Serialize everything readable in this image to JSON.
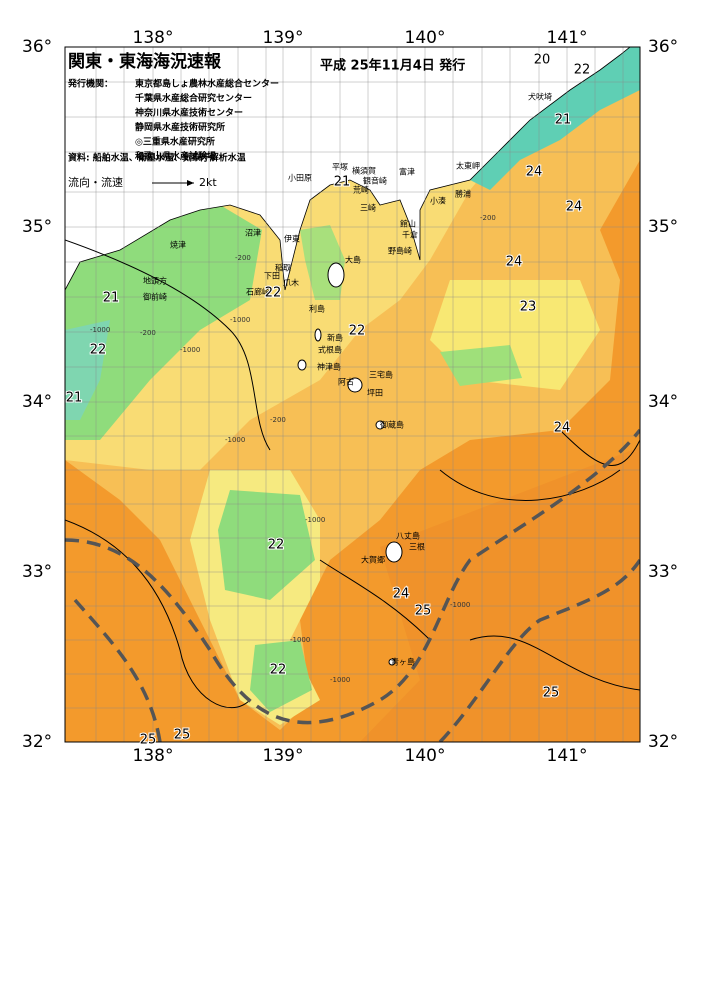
{
  "header": {
    "title": "関東・東海海況速報",
    "date": "平成 25年11月4日 発行"
  },
  "issuers": {
    "label": "発行機関：",
    "names": [
      "東京都島しょ農林水産総合センター",
      "千葉県水産総合研究センター",
      "神奈川県水産技術センター",
      "静岡県水産技術研究所",
      "◎三重県水産研究所",
      "和歌山県水産試験場"
    ]
  },
  "source": "資料: 船舶水温、衛星水温、気象庁解析水温",
  "legend": {
    "label": "流向・流速",
    "speed": "2kt"
  },
  "axes": {
    "longitude": [
      "138°",
      "139°",
      "140°",
      "141°"
    ],
    "latitude": [
      "36°",
      "35°",
      "34°",
      "33°",
      "32°"
    ]
  },
  "places": [
    "犬吠埼",
    "太東岬",
    "勝浦",
    "小湊",
    "小田原",
    "平塚",
    "横須賀",
    "観音崎",
    "荒崎",
    "富津",
    "三崎",
    "館山",
    "千倉",
    "野島崎",
    "大島",
    "焼津",
    "沼津",
    "伊東",
    "稲取",
    "下田",
    "爪木",
    "石廊崎",
    "地頭方",
    "御前崎",
    "利島",
    "新島",
    "式根島",
    "神津島",
    "三宅島",
    "阿古",
    "坪田",
    "御蔵島",
    "八丈島",
    "大賀郷",
    "三根",
    "青ヶ島"
  ],
  "isotherms": [
    "20",
    "22",
    "21",
    "24",
    "24",
    "24",
    "23",
    "21",
    "22",
    "22",
    "21",
    "22",
    "21",
    "24",
    "22",
    "24",
    "25",
    "22",
    "25",
    "25",
    "25"
  ],
  "depths": [
    "-1000",
    "-200",
    "-1000",
    "-200",
    "-1000",
    "-200",
    "-1000",
    "-1000",
    "-1000",
    "-1000",
    "-200",
    "-1000"
  ]
}
